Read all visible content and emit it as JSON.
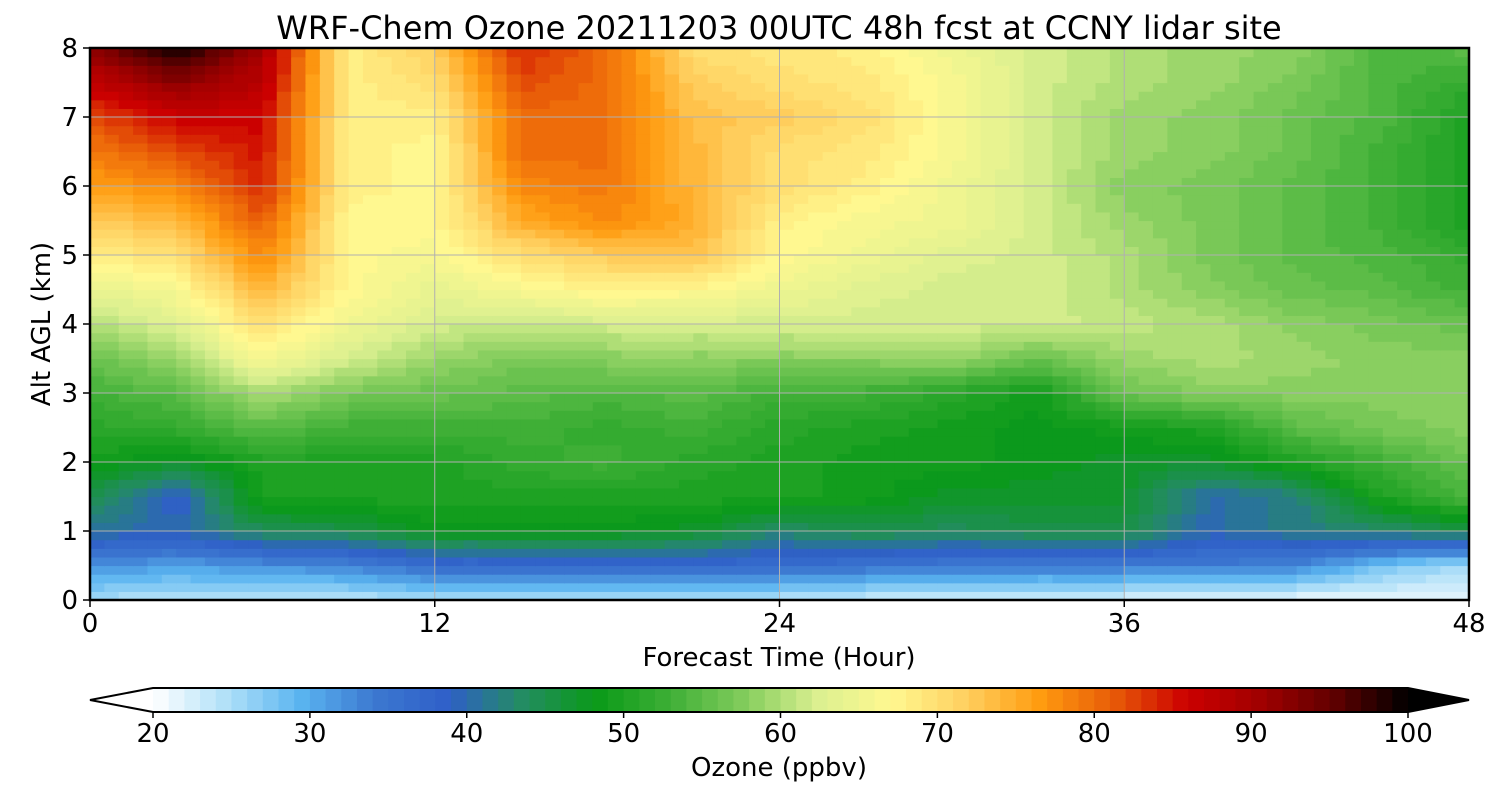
{
  "chart_data": {
    "type": "heatmap",
    "title": "WRF-Chem Ozone  20211203 00UTC 48h fcst at CCNY lidar site",
    "xlabel": "Forecast Time (Hour)",
    "ylabel": "Alt AGL (km)",
    "xlim": [
      0,
      48
    ],
    "ylim": [
      0,
      8
    ],
    "x_ticks": [
      0,
      12,
      24,
      36,
      48
    ],
    "y_ticks": [
      0,
      1,
      2,
      3,
      4,
      5,
      6,
      7,
      8
    ],
    "grid": true,
    "x": [
      0,
      3,
      6,
      9,
      12,
      15,
      18,
      21,
      24,
      27,
      30,
      33,
      36,
      39,
      42,
      45,
      48
    ],
    "y": [
      0,
      0.5,
      1,
      1.5,
      2,
      2.5,
      3,
      3.5,
      4,
      4.5,
      5,
      5.5,
      6,
      6.5,
      7,
      7.5,
      8
    ],
    "z": [
      [
        25,
        24,
        24,
        24,
        25,
        25,
        25,
        24,
        24,
        23,
        23,
        22,
        22,
        21,
        21,
        21,
        21
      ],
      [
        32,
        31,
        32,
        33,
        36,
        36,
        37,
        37,
        36,
        35,
        34,
        34,
        34,
        34,
        33,
        28,
        25
      ],
      [
        41,
        40,
        44,
        45,
        48,
        48,
        48,
        47,
        43,
        45,
        44,
        45,
        45,
        40,
        42,
        43,
        45
      ],
      [
        45,
        38,
        50,
        50,
        50,
        50,
        50,
        50,
        50,
        49,
        47,
        47,
        47,
        40,
        42,
        50,
        54
      ],
      [
        49,
        47,
        50,
        50,
        50,
        52,
        53,
        51,
        50,
        49,
        49,
        48,
        47,
        47,
        50,
        53,
        56
      ],
      [
        51,
        52,
        55,
        53,
        53,
        53,
        52,
        53,
        51,
        50,
        49,
        48,
        49,
        50,
        55,
        57,
        58
      ],
      [
        53,
        55,
        60,
        57,
        56,
        55,
        54,
        55,
        53,
        53,
        51,
        49,
        56,
        58,
        58,
        58,
        58
      ],
      [
        56,
        59,
        66,
        62,
        59,
        57,
        58,
        58,
        58,
        58,
        59,
        56,
        59,
        60,
        59,
        58,
        58
      ],
      [
        60,
        63,
        70,
        65,
        62,
        61,
        62,
        62,
        62,
        62,
        62,
        62,
        61,
        60,
        58,
        57,
        56
      ],
      [
        64,
        66,
        74,
        67,
        64,
        66,
        68,
        67,
        65,
        63,
        62,
        62,
        60,
        58,
        56,
        55,
        53
      ],
      [
        68,
        70,
        78,
        67,
        66,
        70,
        72,
        73,
        67,
        65,
        63,
        62,
        60,
        57,
        55,
        54,
        52
      ],
      [
        72,
        74,
        81,
        67,
        67,
        75,
        78,
        75,
        68,
        66,
        65,
        62,
        59,
        57,
        55,
        53,
        50
      ],
      [
        76,
        78,
        84,
        68,
        67,
        78,
        79,
        74,
        70,
        68,
        65,
        62,
        58,
        57,
        55,
        53,
        50
      ],
      [
        79,
        82,
        85,
        68,
        67,
        80,
        80,
        74,
        70,
        69,
        66,
        62,
        59,
        58,
        56,
        53,
        50
      ],
      [
        82,
        86,
        86,
        68,
        68,
        80,
        80,
        73,
        72,
        70,
        66,
        62,
        59,
        58,
        56,
        54,
        50
      ],
      [
        87,
        92,
        88,
        68,
        70,
        82,
        80,
        72,
        70,
        69,
        66,
        62,
        60,
        59,
        57,
        54,
        52
      ],
      [
        92,
        100,
        90,
        68,
        72,
        84,
        80,
        70,
        69,
        68,
        65,
        62,
        60,
        59,
        58,
        54,
        55
      ]
    ],
    "colorbar": {
      "label": "Ozone  (ppbv)",
      "min": 20,
      "max": 100,
      "ticks": [
        20,
        30,
        40,
        50,
        60,
        70,
        80,
        90,
        100
      ],
      "extend": "both",
      "colors": [
        "#ffffff",
        "#b0e0f8",
        "#5ab4f0",
        "#3c78d0",
        "#2f5fc8",
        "#238c62",
        "#0a9a18",
        "#3eaf36",
        "#82cc5c",
        "#dbf090",
        "#fff890",
        "#ffd060",
        "#ff9c10",
        "#e85c08",
        "#cc0000",
        "#a00000",
        "#600000",
        "#000000"
      ]
    }
  }
}
